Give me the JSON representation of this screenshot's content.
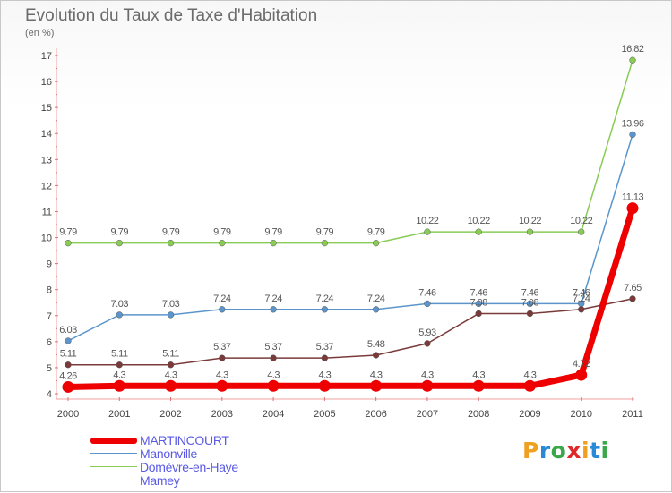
{
  "title": "Evolution du Taux de Taxe d'Habitation",
  "subtitle": "(en %)",
  "logo": {
    "p": "P",
    "r": "r",
    "o": "o",
    "x": "x",
    "i": "i",
    "t": "t",
    "i2": "i"
  },
  "legend": [
    {
      "name": "MARTINCOURT"
    },
    {
      "name": "Manonville"
    },
    {
      "name": "Domèvre-en-Haye"
    },
    {
      "name": "Mamey"
    }
  ],
  "chart_data": {
    "type": "line",
    "x": [
      "2000",
      "2001",
      "2002",
      "2003",
      "2004",
      "2005",
      "2006",
      "2007",
      "2008",
      "2009",
      "2010",
      "2011"
    ],
    "ylim": [
      4,
      17
    ],
    "yticks": [
      "4",
      "5",
      "6",
      "7",
      "8",
      "9",
      "10",
      "11",
      "12",
      "13",
      "14",
      "15",
      "16",
      "17"
    ],
    "grid": false,
    "legend_position": "bottom-left",
    "series": [
      {
        "name": "Domèvre-en-Haye",
        "color": "#88cc55",
        "values": [
          9.79,
          9.79,
          9.79,
          9.79,
          9.79,
          9.79,
          9.79,
          10.22,
          10.22,
          10.22,
          10.22,
          16.82
        ],
        "labels": [
          "9.79",
          "9.79",
          "9.79",
          "9.79",
          "9.79",
          "9.79",
          "9.79",
          "10.22",
          "10.22",
          "10.22",
          "10.22",
          "16.82"
        ]
      },
      {
        "name": "Manonville",
        "color": "#5b95cb",
        "values": [
          6.03,
          7.03,
          7.03,
          7.24,
          7.24,
          7.24,
          7.24,
          7.46,
          7.46,
          7.46,
          7.46,
          13.96
        ],
        "labels": [
          "6.03",
          "7.03",
          "7.03",
          "7.24",
          "7.24",
          "7.24",
          "7.24",
          "7.46",
          "7.46",
          "7.46",
          "7.46",
          "13.96"
        ]
      },
      {
        "name": "Mamey",
        "color": "#7a3a3a",
        "values": [
          5.11,
          5.11,
          5.11,
          5.37,
          5.37,
          5.37,
          5.48,
          5.93,
          7.08,
          7.08,
          7.24,
          7.65
        ],
        "labels": [
          "5.11",
          "5.11",
          "5.11",
          "5.37",
          "5.37",
          "5.37",
          "5.48",
          "5.93",
          "7.08",
          "7.08",
          "7.24",
          "7.65"
        ]
      },
      {
        "name": "MARTINCOURT",
        "color": "#ee0000",
        "values": [
          4.26,
          4.3,
          4.3,
          4.3,
          4.3,
          4.3,
          4.3,
          4.3,
          4.3,
          4.3,
          4.72,
          11.13
        ],
        "labels": [
          "4.26",
          "4.3",
          "4.3",
          "4.3",
          "4.3",
          "4.3",
          "4.3",
          "4.3",
          "4.3",
          "4.3",
          "4.72",
          "11.13"
        ]
      }
    ]
  }
}
